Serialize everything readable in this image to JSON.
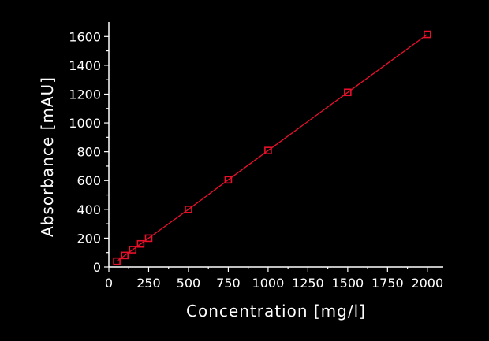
{
  "chart_data": {
    "type": "line",
    "xlabel": "Concentration [mg/l]",
    "ylabel": "Absorbance [mAU]",
    "xlim": [
      0,
      2100
    ],
    "ylim": [
      0,
      1700
    ],
    "x_ticks": [
      0,
      250,
      500,
      750,
      1000,
      1250,
      1500,
      1750,
      2000
    ],
    "y_ticks": [
      0,
      200,
      400,
      600,
      800,
      1000,
      1200,
      1400,
      1600
    ],
    "grid": false,
    "marker": "open-square",
    "series": [
      {
        "color": "#e8102a",
        "x": [
          50,
          100,
          150,
          200,
          250,
          500,
          750,
          1000,
          1500,
          2000
        ],
        "y": [
          40,
          80,
          120,
          160,
          200,
          400,
          605,
          808,
          1212,
          1615
        ]
      }
    ]
  }
}
